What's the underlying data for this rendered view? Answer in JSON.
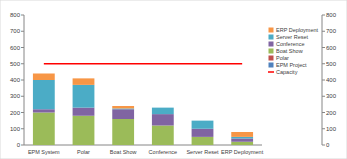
{
  "chart_data": {
    "type": "bar",
    "stacked": true,
    "legend": "right",
    "categories": [
      "EPM System",
      "Polar",
      "Boat Show",
      "Conference",
      "Server Reset",
      "ERP Deployment"
    ],
    "ylim": [
      0,
      800
    ],
    "yticks": [
      0,
      100,
      200,
      300,
      400,
      500,
      600,
      700,
      800
    ],
    "y2lim": [
      0,
      800
    ],
    "y2ticks": [
      0,
      100,
      200,
      300,
      400,
      500,
      600,
      700,
      800
    ],
    "series": [
      {
        "name": "EPM Project",
        "color": "#4f81bd",
        "values": [
          0,
          0,
          0,
          0,
          0,
          0
        ]
      },
      {
        "name": "Polar",
        "color": "#c0504d",
        "values": [
          0,
          0,
          0,
          0,
          0,
          0
        ]
      },
      {
        "name": "Boat Show",
        "color": "#9bbb59",
        "values": [
          200,
          180,
          160,
          120,
          50,
          20
        ]
      },
      {
        "name": "Conference",
        "color": "#8064a2",
        "values": [
          20,
          50,
          60,
          70,
          50,
          20
        ]
      },
      {
        "name": "Server Reset",
        "color": "#4bacc6",
        "values": [
          180,
          140,
          5,
          40,
          50,
          10
        ]
      },
      {
        "name": "ERP Deployment",
        "color": "#f79646",
        "values": [
          40,
          40,
          15,
          0,
          0,
          30
        ]
      },
      {
        "name": "Capacity",
        "color": "#ff0000",
        "type": "line",
        "axis": "y2",
        "values": [
          500,
          500,
          500,
          500,
          500,
          500
        ]
      }
    ]
  }
}
